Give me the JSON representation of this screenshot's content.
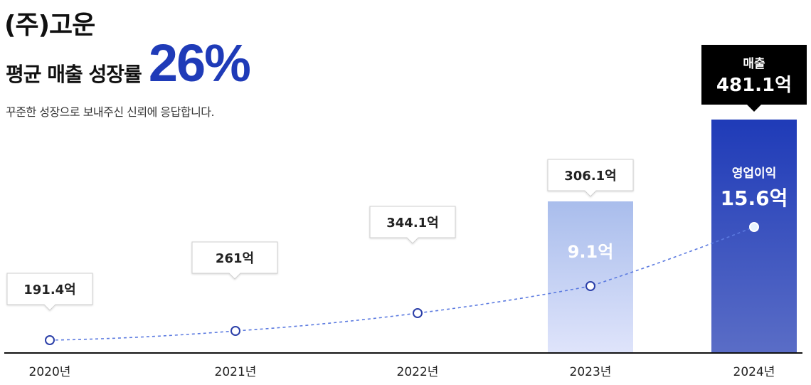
{
  "header": {
    "company": "(주)고운",
    "headline_label": "평균 매출 성장률",
    "headline_value": "26%",
    "subtitle": "꾸준한 성장으로 보내주신 신뢰에 응답합니다."
  },
  "colors": {
    "accent": "#1f3bb8",
    "bar_2023_top": "#a9bdec",
    "bar_2023_bottom": "#dfe4fb",
    "bar_2024_top": "#1f3bb8",
    "bar_2024_bottom": "#5a6dc6",
    "line": "#5b7ae0",
    "callout_dark": "#000000"
  },
  "chart_data": {
    "type": "bar",
    "categories": [
      "2020년",
      "2021년",
      "2022년",
      "2023년",
      "2024년"
    ],
    "series": [
      {
        "name": "매출",
        "values": [
          191.4,
          261,
          344.1,
          306.1,
          481.1
        ],
        "labels": [
          "191.4억",
          "261억",
          "344.1억",
          "306.1억",
          "481.1억"
        ]
      },
      {
        "name": "영업이익",
        "values": [
          null,
          null,
          null,
          9.1,
          15.6
        ],
        "labels": [
          null,
          null,
          null,
          "9.1억",
          "15.6억"
        ]
      }
    ],
    "highlight_callout": {
      "title": "매출",
      "value": "481.1억"
    },
    "bar_inner_title": "영업이익"
  }
}
